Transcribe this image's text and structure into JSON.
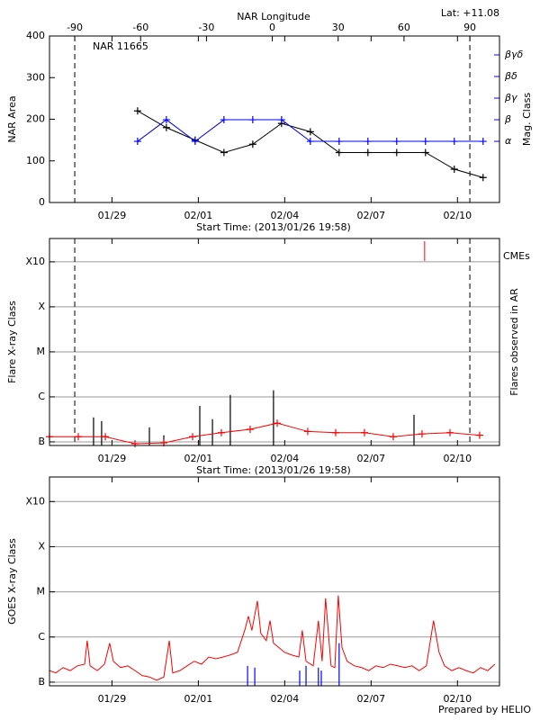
{
  "chart_data": [
    {
      "type": "line",
      "title": "NAR 11665",
      "annotation": "Lat: +11.08",
      "x2label": "NAR Longitude",
      "xlabel": "Start Time: (2013/01/26 19:58)",
      "ylabel": "NAR Area",
      "y2label": "Mag. Class",
      "xlim": [
        0,
        15.63
      ],
      "xticks": [
        {
          "value": 2.17,
          "label": "01/29"
        },
        {
          "value": 5.17,
          "label": "02/01"
        },
        {
          "value": 8.17,
          "label": "02/04"
        },
        {
          "value": 11.17,
          "label": "02/07"
        },
        {
          "value": 14.17,
          "label": "02/10"
        }
      ],
      "x2lim": [
        -101.5,
        103.5
      ],
      "x2ticks": [
        -90,
        -60,
        -30,
        0,
        30,
        60,
        90
      ],
      "ylim": [
        0,
        400
      ],
      "yticks": [
        0,
        100,
        200,
        300,
        400
      ],
      "y2lim": [
        -1.83,
        5.875
      ],
      "y2ticks": [
        {
          "value": 1,
          "label": "α"
        },
        {
          "value": 2,
          "label": "β"
        },
        {
          "value": 3,
          "label": "βγ"
        },
        {
          "value": 4,
          "label": "βδ"
        },
        {
          "value": 5,
          "label": "βγδ"
        }
      ],
      "dashed_limbs": true,
      "grid": false,
      "series": [
        {
          "color": "#000000",
          "marker": "+",
          "x": [
            3.06,
            4.06,
            5.06,
            6.06,
            7.06,
            8.06,
            9.06,
            10.06,
            11.06,
            12.06,
            13.06,
            14.06,
            15.06
          ],
          "values": [
            220,
            180,
            150,
            120,
            140,
            190,
            170,
            120,
            120,
            120,
            120,
            80,
            60
          ]
        },
        {
          "color": "#0000ff",
          "marker": "+",
          "axis": "y2",
          "x": [
            3.06,
            4.06,
            5.06,
            6.06,
            7.06,
            8.06,
            9.06,
            10.06,
            11.06,
            12.06,
            13.06,
            14.06,
            15.06
          ],
          "values": [
            1,
            2,
            1,
            2,
            2,
            2,
            1,
            1,
            1,
            1,
            1,
            1,
            1
          ]
        }
      ]
    },
    {
      "type": "line",
      "xlabel": "Start Time: (2013/01/26 19:58)",
      "ylabel": "Flare X-ray Class",
      "y2label": "Flares observed in AR",
      "xlim": [
        0,
        15.63
      ],
      "xticks": [
        {
          "value": 2.17,
          "label": "01/29"
        },
        {
          "value": 5.17,
          "label": "02/01"
        },
        {
          "value": 8.17,
          "label": "02/04"
        },
        {
          "value": 11.17,
          "label": "02/07"
        },
        {
          "value": 14.17,
          "label": "02/10"
        }
      ],
      "ylog": true,
      "ylim": [
        8.3e-08,
        0.0033
      ],
      "yticks": [
        {
          "value": 1e-07,
          "label": "B"
        },
        {
          "value": 1e-06,
          "label": "C"
        },
        {
          "value": 1e-05,
          "label": "M"
        },
        {
          "value": 0.0001,
          "label": "X"
        },
        {
          "value": 0.001,
          "label": "X10"
        }
      ],
      "dashed_limbs": true,
      "grid": true,
      "series": [
        {
          "color": "#ff0000",
          "marker": "+",
          "x": [
            0,
            1,
            1.94,
            2.97,
            3.97,
            4.97,
            5.97,
            6.97,
            7.91,
            8.97,
            9.94,
            10.94,
            11.94,
            12.94,
            13.91,
            14.94
          ],
          "values": [
            1.3e-07,
            1.3e-07,
            1.3e-07,
            9.1e-08,
            9.5e-08,
            1.3e-07,
            1.6e-07,
            1.9e-07,
            2.6e-07,
            1.7e-07,
            1.6e-07,
            1.6e-07,
            1.3e-07,
            1.5e-07,
            1.6e-07,
            1.4e-07
          ]
        }
      ],
      "flares": {
        "color": "#000000",
        "x": [
          1.53,
          1.81,
          3.47,
          3.97,
          5.22,
          5.66,
          6.28,
          7.78,
          12.66
        ],
        "values": [
          3.5e-07,
          2.9e-07,
          2.1e-07,
          1.4e-07,
          6.3e-07,
          3.2e-07,
          1.1e-06,
          1.4e-06,
          4e-07
        ]
      },
      "cmes": {
        "name": "CMEs",
        "color": "#ff0000",
        "x": [
          13.03
        ]
      }
    },
    {
      "type": "line",
      "ylabel": "GOES X-ray Class",
      "xlim": [
        0,
        15.63
      ],
      "xticks": [
        {
          "value": 2.17,
          "label": "01/29"
        },
        {
          "value": 5.17,
          "label": "02/01"
        },
        {
          "value": 8.17,
          "label": "02/04"
        },
        {
          "value": 11.17,
          "label": "02/07"
        },
        {
          "value": 14.17,
          "label": "02/10"
        }
      ],
      "ylog": true,
      "ylim": [
        8.3e-08,
        0.0035
      ],
      "yticks": [
        {
          "value": 1e-07,
          "label": "B"
        },
        {
          "value": 1e-06,
          "label": "C"
        },
        {
          "value": 1e-05,
          "label": "M"
        },
        {
          "value": 0.0001,
          "label": "X"
        },
        {
          "value": 0.001,
          "label": "X10"
        }
      ],
      "dashed_limbs": false,
      "grid": true,
      "series": [
        {
          "color": "#ff0000",
          "x": [
            0,
            0.22,
            0.47,
            0.72,
            0.97,
            1.22,
            1.31,
            1.41,
            1.66,
            1.91,
            2.09,
            2.22,
            2.47,
            2.72,
            2.97,
            3.22,
            3.47,
            3.72,
            3.97,
            4.16,
            4.28,
            4.53,
            4.78,
            5.03,
            5.28,
            5.53,
            5.78,
            6.03,
            6.28,
            6.53,
            6.78,
            6.91,
            7.03,
            7.22,
            7.34,
            7.53,
            7.66,
            7.78,
            7.97,
            8.16,
            8.41,
            8.66,
            8.78,
            8.91,
            9.16,
            9.34,
            9.47,
            9.59,
            9.78,
            9.91,
            10.03,
            10.16,
            10.34,
            10.59,
            10.84,
            11.09,
            11.34,
            11.59,
            11.84,
            12.09,
            12.34,
            12.59,
            12.84,
            13.09,
            13.34,
            13.53,
            13.72,
            13.97,
            14.22,
            14.47,
            14.72,
            14.97,
            15.22,
            15.47
          ],
          "values": [
            1.8e-07,
            1.6e-07,
            2.1e-07,
            1.8e-07,
            2.3e-07,
            2.5e-07,
            8.3e-07,
            2.3e-07,
            1.8e-07,
            2.5e-07,
            7.3e-07,
            2.9e-07,
            2.1e-07,
            2.3e-07,
            1.8e-07,
            1.4e-07,
            1.3e-07,
            1.1e-07,
            1.3e-07,
            8.3e-07,
            1.6e-07,
            1.8e-07,
            2.3e-07,
            2.9e-07,
            2.5e-07,
            3.6e-07,
            3.3e-07,
            3.6e-07,
            4e-07,
            4.6e-07,
            1.4e-06,
            2.9e-06,
            1.4e-06,
            6.3e-06,
            1.2e-06,
            8.3e-07,
            2.3e-06,
            7.3e-07,
            5.8e-07,
            4.6e-07,
            4e-07,
            3.6e-07,
            1.4e-06,
            2.9e-07,
            2.3e-07,
            2.3e-06,
            2.9e-07,
            7.2e-06,
            2.3e-07,
            2.1e-07,
            8.3e-06,
            5.8e-07,
            2.9e-07,
            2.3e-07,
            2.1e-07,
            1.8e-07,
            2.3e-07,
            2.1e-07,
            2.5e-07,
            2.3e-07,
            2.1e-07,
            2.3e-07,
            1.8e-07,
            2.3e-07,
            2.3e-06,
            4.6e-07,
            2.3e-07,
            1.8e-07,
            2.1e-07,
            1.8e-07,
            1.6e-07,
            2.1e-07,
            1.8e-07,
            2.5e-07
          ]
        }
      ],
      "flares": {
        "color": "#0000ff",
        "x": [
          6.88,
          7.13,
          8.69,
          8.91,
          9.34,
          9.44,
          10.06
        ],
        "values": [
          2.3e-07,
          2.1e-07,
          1.8e-07,
          2.3e-07,
          2.1e-07,
          1.8e-07,
          7.3e-07
        ]
      }
    }
  ],
  "footer": "Prepared by HELIO"
}
